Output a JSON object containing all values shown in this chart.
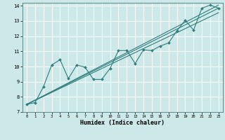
{
  "xlabel": "Humidex (Indice chaleur)",
  "bg_color": "#cce8e8",
  "grid_color": "#ffffff",
  "line_color": "#2e7d7d",
  "xlim": [
    -0.5,
    23.5
  ],
  "ylim": [
    7,
    14.2
  ],
  "xticks": [
    0,
    1,
    2,
    3,
    4,
    5,
    6,
    7,
    8,
    9,
    10,
    11,
    12,
    13,
    14,
    15,
    16,
    17,
    18,
    19,
    20,
    21,
    22,
    23
  ],
  "yticks": [
    7,
    8,
    9,
    10,
    11,
    12,
    13,
    14
  ],
  "scatter_x": [
    0,
    1,
    2,
    3,
    4,
    5,
    6,
    7,
    8,
    9,
    10,
    11,
    12,
    13,
    14,
    15,
    16,
    17,
    18,
    19,
    20,
    21,
    22,
    23
  ],
  "scatter_y": [
    7.5,
    7.62,
    8.65,
    10.1,
    10.45,
    9.2,
    10.1,
    9.95,
    9.15,
    9.15,
    9.88,
    11.05,
    11.05,
    10.2,
    11.1,
    11.05,
    11.35,
    11.55,
    12.35,
    13.05,
    12.4,
    13.85,
    14.05,
    13.85
  ],
  "line1_x": [
    0,
    23
  ],
  "line1_y": [
    7.5,
    13.85
  ],
  "line2_x": [
    0,
    23
  ],
  "line2_y": [
    7.5,
    14.05
  ],
  "line3_x": [
    0,
    23
  ],
  "line3_y": [
    7.5,
    13.55
  ]
}
